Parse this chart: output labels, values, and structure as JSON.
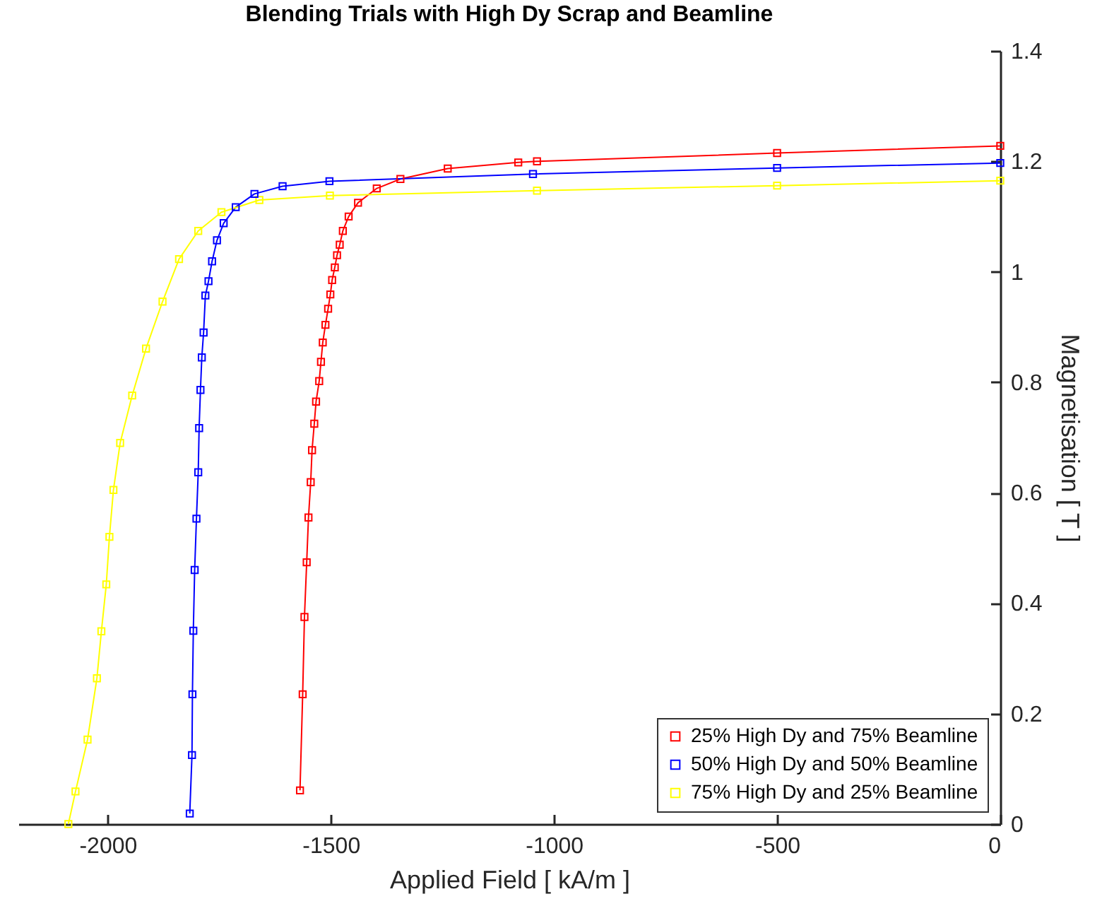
{
  "chart_data": {
    "type": "line",
    "title": "Blending Trials with High Dy Scrap and Beamline",
    "xlabel": "Applied Field [ kA/m ]",
    "ylabel": "Magnetisation [ T ]",
    "xlim": [
      -2200,
      0
    ],
    "xticks": [
      -2000,
      -1500,
      -1000,
      -500,
      0
    ],
    "ylim": [
      0,
      1.4
    ],
    "yticks": [
      0,
      0.2,
      0.4,
      0.6,
      0.8,
      1,
      1.2,
      1.4
    ],
    "grid": false,
    "legend": "bottom right",
    "marker": "square",
    "line_style": "solid",
    "series": [
      {
        "name": "25% High Dy and 75% Beamline",
        "color": "#ff0000",
        "x": [
          -1569,
          -1563,
          -1559,
          -1554,
          -1550,
          -1545,
          -1542,
          -1537,
          -1533,
          -1526,
          -1522,
          -1518,
          -1512,
          -1506,
          -1501,
          -1497,
          -1491,
          -1486,
          -1480,
          -1473,
          -1460,
          -1439,
          -1397,
          -1344,
          -1238,
          -1080,
          -1038,
          -500,
          0
        ],
        "values": [
          0.061,
          0.235,
          0.375,
          0.474,
          0.555,
          0.619,
          0.677,
          0.725,
          0.765,
          0.802,
          0.837,
          0.872,
          0.904,
          0.933,
          0.959,
          0.985,
          1.008,
          1.03,
          1.049,
          1.074,
          1.1,
          1.125,
          1.151,
          1.168,
          1.187,
          1.198,
          1.2,
          1.215,
          1.228
        ]
      },
      {
        "name": "50% High Dy and 50% Beamline",
        "color": "#0000ff",
        "x": [
          -1816,
          -1811,
          -1810,
          -1808,
          -1805,
          -1801,
          -1797,
          -1795,
          -1792,
          -1789,
          -1785,
          -1781,
          -1774,
          -1766,
          -1755,
          -1740,
          -1713,
          -1671,
          -1608,
          -1503,
          -1047,
          -500,
          0
        ],
        "values": [
          0.019,
          0.125,
          0.235,
          0.35,
          0.46,
          0.553,
          0.637,
          0.717,
          0.786,
          0.845,
          0.89,
          0.957,
          0.983,
          1.019,
          1.057,
          1.088,
          1.117,
          1.141,
          1.155,
          1.164,
          1.177,
          1.188,
          1.197
        ]
      },
      {
        "name": "75% High Dy and 25% Beamline",
        "color": "#ffff00",
        "x": [
          -2088,
          -2072,
          -2045,
          -2024,
          -2014,
          -2003,
          -1996,
          -1987,
          -1972,
          -1945,
          -1914,
          -1877,
          -1840,
          -1797,
          -1745,
          -1660,
          -1502,
          -1038,
          -500,
          0
        ],
        "values": [
          0,
          0.059,
          0.153,
          0.264,
          0.349,
          0.434,
          0.52,
          0.605,
          0.69,
          0.776,
          0.861,
          0.946,
          1.023,
          1.074,
          1.108,
          1.13,
          1.138,
          1.147,
          1.156,
          1.165
        ]
      }
    ]
  }
}
